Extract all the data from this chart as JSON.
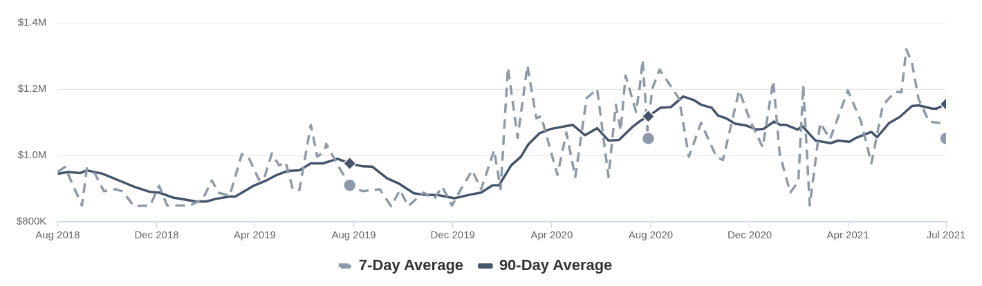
{
  "chart_data": {
    "type": "line",
    "xlim": [
      "2018-08-01",
      "2021-07-31"
    ],
    "xticks": [
      {
        "value": "2018-08-01",
        "label": "Aug 2018"
      },
      {
        "value": "2018-12-01",
        "label": "Dec 2018"
      },
      {
        "value": "2019-04-01",
        "label": "Apr 2019"
      },
      {
        "value": "2019-08-01",
        "label": "Aug 2019"
      },
      {
        "value": "2019-12-01",
        "label": "Dec 2019"
      },
      {
        "value": "2020-04-01",
        "label": "Apr 2020"
      },
      {
        "value": "2020-08-01",
        "label": "Aug 2020"
      },
      {
        "value": "2020-12-01",
        "label": "Dec 2020"
      },
      {
        "value": "2021-04-01",
        "label": "Apr 2021"
      },
      {
        "value": "2021-07-31",
        "label": "Jul 2021"
      }
    ],
    "ylim": [
      800000,
      1400000
    ],
    "yticks": [
      {
        "value": 800000,
        "label": "$800K"
      },
      {
        "value": 1000000,
        "label": "$1.0M"
      },
      {
        "value": 1200000,
        "label": "$1.2M"
      },
      {
        "value": 1400000,
        "label": "$1.4M"
      }
    ],
    "grid": "y",
    "legend": "bottom",
    "series": [
      {
        "name": "7-Day Average",
        "type": "line",
        "color": "#8e9aa9",
        "line_style": "dashed",
        "marker": "none",
        "x": [
          "2018-08-01",
          "2018-08-10",
          "2018-08-31",
          "2018-09-06",
          "2018-09-16",
          "2018-09-27",
          "2018-10-11",
          "2018-10-20",
          "2018-11-03",
          "2018-11-23",
          "2018-12-04",
          "2018-12-14",
          "2019-01-11",
          "2019-01-27",
          "2019-02-07",
          "2019-02-15",
          "2019-03-01",
          "2019-03-16",
          "2019-03-24",
          "2019-04-06",
          "2019-04-12",
          "2019-04-22",
          "2019-05-01",
          "2019-05-09",
          "2019-05-18",
          "2019-05-26",
          "2019-06-09",
          "2019-06-17",
          "2019-06-26",
          "2019-06-28",
          "2019-07-16",
          "2019-07-27",
          "2019-08-12",
          "2019-09-02",
          "2019-09-16",
          "2019-09-27",
          "2019-10-07",
          "2019-10-26",
          "2019-11-08",
          "2019-11-18",
          "2019-11-30",
          "2019-12-11",
          "2019-12-25",
          "2020-01-05",
          "2020-01-21",
          "2020-01-29",
          "2020-02-07",
          "2020-02-19",
          "2020-03-02",
          "2020-03-13",
          "2020-03-19",
          "2020-04-08",
          "2020-04-19",
          "2020-04-30",
          "2020-05-14",
          "2020-05-27",
          "2020-06-10",
          "2020-06-19",
          "2020-06-25",
          "2020-07-01",
          "2020-07-14",
          "2020-07-19",
          "2020-07-22",
          "2020-07-28",
          "2020-08-03",
          "2020-08-12",
          "2020-09-05",
          "2020-09-17",
          "2020-10-02",
          "2020-10-21",
          "2020-10-29",
          "2020-11-18",
          "2020-12-02",
          "2020-12-17",
          "2020-12-30",
          "2021-01-07",
          "2021-01-20",
          "2021-01-30",
          "2021-02-05",
          "2021-02-13",
          "2021-02-26",
          "2021-03-10",
          "2021-04-01",
          "2021-04-17",
          "2021-04-30",
          "2021-05-14",
          "2021-05-29",
          "2021-06-06",
          "2021-06-12",
          "2021-06-19",
          "2021-06-27",
          "2021-07-10",
          "2021-07-24"
        ],
        "values": [
          951000,
          965000,
          849000,
          961000,
          945000,
          892000,
          898000,
          892000,
          847000,
          849000,
          908000,
          849000,
          849000,
          869000,
          925000,
          888000,
          878000,
          1004000,
          996000,
          927000,
          927000,
          1006000,
          970000,
          980000,
          896000,
          896000,
          1092000,
          996000,
          1014000,
          1035000,
          955000,
          910000,
          892000,
          898000,
          847000,
          896000,
          847000,
          888000,
          869000,
          906000,
          849000,
          898000,
          955000,
          898000,
          1016000,
          898000,
          1265000,
          1053000,
          1271000,
          1112000,
          1118000,
          941000,
          1069000,
          935000,
          1173000,
          1200000,
          935000,
          1153000,
          1075000,
          1241000,
          1131000,
          1216000,
          1288000,
          1075000,
          1202000,
          1259000,
          1171000,
          996000,
          1098000,
          996000,
          986000,
          1196000,
          1102000,
          1025000,
          1225000,
          1004000,
          888000,
          922000,
          1212000,
          849000,
          1098000,
          1049000,
          1196000,
          1104000,
          976000,
          1151000,
          1192000,
          1190000,
          1320000,
          1280000,
          1171000,
          1102000,
          1098000
        ]
      },
      {
        "name": "90-Day Average",
        "type": "line",
        "color": "#44546a",
        "line_style": "solid",
        "marker": "none",
        "x": [
          "2018-08-01",
          "2018-08-14",
          "2018-08-29",
          "2018-09-06",
          "2018-09-25",
          "2018-10-15",
          "2018-11-04",
          "2018-11-23",
          "2018-12-04",
          "2018-12-21",
          "2019-01-19",
          "2019-01-31",
          "2019-02-12",
          "2019-03-01",
          "2019-03-08",
          "2019-03-30",
          "2019-04-14",
          "2019-04-28",
          "2019-05-11",
          "2019-05-26",
          "2019-06-09",
          "2019-06-24",
          "2019-07-12",
          "2019-07-27",
          "2019-08-12",
          "2019-08-24",
          "2019-09-11",
          "2019-09-25",
          "2019-10-14",
          "2019-10-28",
          "2019-11-14",
          "2019-12-03",
          "2019-12-23",
          "2020-01-05",
          "2020-01-19",
          "2020-01-27",
          "2020-02-11",
          "2020-02-23",
          "2020-03-03",
          "2020-03-17",
          "2020-03-31",
          "2020-04-27",
          "2020-05-12",
          "2020-05-27",
          "2020-06-10",
          "2020-06-23",
          "2020-07-09",
          "2020-07-19",
          "2020-07-29",
          "2020-08-13",
          "2020-08-26",
          "2020-09-10",
          "2020-09-23",
          "2020-10-02",
          "2020-10-15",
          "2020-10-23",
          "2020-11-02",
          "2020-11-13",
          "2020-11-27",
          "2020-12-10",
          "2020-12-18",
          "2020-12-31",
          "2021-01-08",
          "2021-01-15",
          "2021-01-29",
          "2021-02-04",
          "2021-02-20",
          "2021-03-11",
          "2021-03-20",
          "2021-04-03",
          "2021-04-11",
          "2021-04-30",
          "2021-05-07",
          "2021-05-22",
          "2021-06-04",
          "2021-06-19",
          "2021-06-27",
          "2021-07-14",
          "2021-07-19",
          "2021-07-31"
        ],
        "values": [
          945000,
          950000,
          947000,
          955000,
          945000,
          925000,
          905000,
          890000,
          888000,
          873000,
          861000,
          861000,
          869000,
          876000,
          876000,
          908000,
          923000,
          941000,
          953000,
          955000,
          976000,
          976000,
          990000,
          976000,
          967000,
          966000,
          931000,
          916000,
          886000,
          881000,
          880000,
          871000,
          882000,
          888000,
          910000,
          910000,
          970000,
          996000,
          1033000,
          1067000,
          1080000,
          1092000,
          1061000,
          1082000,
          1045000,
          1047000,
          1085000,
          1104000,
          1118000,
          1144000,
          1146000,
          1178000,
          1167000,
          1153000,
          1144000,
          1120000,
          1112000,
          1096000,
          1090000,
          1078000,
          1080000,
          1102000,
          1092000,
          1092000,
          1078000,
          1088000,
          1045000,
          1037000,
          1045000,
          1041000,
          1053000,
          1071000,
          1055000,
          1098000,
          1116000,
          1149000,
          1151000,
          1141000,
          1141000,
          1155000
        ]
      },
      {
        "type": "scatter",
        "color": "#8e9aa9",
        "marker": "circle",
        "x": [
          "2019-07-27",
          "2020-07-29",
          "2021-07-31"
        ],
        "values": [
          910000,
          1051000,
          1051000
        ]
      },
      {
        "type": "scatter",
        "color": "#44546a",
        "marker": "diamond",
        "x": [
          "2019-07-27",
          "2020-07-29",
          "2021-07-31"
        ],
        "values": [
          976000,
          1118000,
          1155000
        ]
      }
    ]
  }
}
